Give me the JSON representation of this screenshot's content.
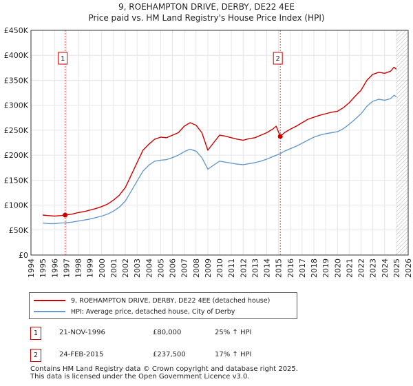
{
  "title_line1": "9, ROEHAMPTON DRIVE, DERBY, DE22 4EE",
  "title_line2": "Price paid vs. HM Land Registry's House Price Index (HPI)",
  "colors": {
    "property": "#cc0000",
    "hpi": "#6699cc",
    "marker_line": "#dd4444",
    "grid": "#e6e6e6",
    "future_hatch": "#aaaaaa"
  },
  "chart_data": {
    "type": "line",
    "x_range": [
      1994,
      2026
    ],
    "y_range": [
      0,
      450000
    ],
    "x_ticks": [
      "1994",
      "1995",
      "1996",
      "1997",
      "1998",
      "1999",
      "2000",
      "2001",
      "2002",
      "2003",
      "2004",
      "2005",
      "2006",
      "2007",
      "2008",
      "2009",
      "2010",
      "2011",
      "2012",
      "2013",
      "2014",
      "2015",
      "2016",
      "2017",
      "2018",
      "2019",
      "2020",
      "2021",
      "2022",
      "2023",
      "2024",
      "2025",
      "2026"
    ],
    "y_ticks": [
      {
        "value": 0,
        "label": "£0"
      },
      {
        "value": 50000,
        "label": "£50K"
      },
      {
        "value": 100000,
        "label": "£100K"
      },
      {
        "value": 150000,
        "label": "£150K"
      },
      {
        "value": 200000,
        "label": "£200K"
      },
      {
        "value": 250000,
        "label": "£250K"
      },
      {
        "value": 300000,
        "label": "£300K"
      },
      {
        "value": 350000,
        "label": "£350K"
      },
      {
        "value": 400000,
        "label": "£400K"
      },
      {
        "value": 450000,
        "label": "£450K"
      }
    ],
    "grid": true,
    "data_end_year": 2025.0,
    "series": [
      {
        "name": "9, ROEHAMPTON DRIVE, DERBY, DE22 4EE (detached house)",
        "color": "#cc0000",
        "points": [
          [
            1995.0,
            80000
          ],
          [
            1995.5,
            79000
          ],
          [
            1996.0,
            78000
          ],
          [
            1996.5,
            79000
          ],
          [
            1996.9,
            80000
          ],
          [
            1997.5,
            82000
          ],
          [
            1998.0,
            85000
          ],
          [
            1998.5,
            87000
          ],
          [
            1999.0,
            90000
          ],
          [
            1999.5,
            93000
          ],
          [
            2000.0,
            97000
          ],
          [
            2000.5,
            102000
          ],
          [
            2001.0,
            110000
          ],
          [
            2001.5,
            120000
          ],
          [
            2002.0,
            135000
          ],
          [
            2002.5,
            160000
          ],
          [
            2003.0,
            185000
          ],
          [
            2003.5,
            210000
          ],
          [
            2004.0,
            222000
          ],
          [
            2004.5,
            232000
          ],
          [
            2005.0,
            236000
          ],
          [
            2005.5,
            235000
          ],
          [
            2006.0,
            240000
          ],
          [
            2006.5,
            245000
          ],
          [
            2007.0,
            258000
          ],
          [
            2007.5,
            265000
          ],
          [
            2008.0,
            260000
          ],
          [
            2008.5,
            245000
          ],
          [
            2009.0,
            210000
          ],
          [
            2009.5,
            225000
          ],
          [
            2010.0,
            240000
          ],
          [
            2010.5,
            238000
          ],
          [
            2011.0,
            235000
          ],
          [
            2011.5,
            232000
          ],
          [
            2012.0,
            230000
          ],
          [
            2012.5,
            233000
          ],
          [
            2013.0,
            235000
          ],
          [
            2013.5,
            240000
          ],
          [
            2014.0,
            245000
          ],
          [
            2014.5,
            252000
          ],
          [
            2014.8,
            258000
          ],
          [
            2015.15,
            237500
          ],
          [
            2015.5,
            245000
          ],
          [
            2016.0,
            252000
          ],
          [
            2016.5,
            258000
          ],
          [
            2017.0,
            265000
          ],
          [
            2017.5,
            272000
          ],
          [
            2018.0,
            276000
          ],
          [
            2018.5,
            280000
          ],
          [
            2019.0,
            283000
          ],
          [
            2019.5,
            286000
          ],
          [
            2020.0,
            288000
          ],
          [
            2020.5,
            295000
          ],
          [
            2021.0,
            305000
          ],
          [
            2021.5,
            318000
          ],
          [
            2022.0,
            330000
          ],
          [
            2022.5,
            350000
          ],
          [
            2023.0,
            362000
          ],
          [
            2023.5,
            366000
          ],
          [
            2024.0,
            364000
          ],
          [
            2024.5,
            368000
          ],
          [
            2024.8,
            376000
          ],
          [
            2025.0,
            372000
          ]
        ]
      },
      {
        "name": "HPI: Average price, detached house, City of Derby",
        "color": "#6699cc",
        "points": [
          [
            1995.0,
            64000
          ],
          [
            1995.5,
            63000
          ],
          [
            1996.0,
            63000
          ],
          [
            1996.5,
            64000
          ],
          [
            1996.9,
            64500
          ],
          [
            1997.5,
            66000
          ],
          [
            1998.0,
            68000
          ],
          [
            1998.5,
            70000
          ],
          [
            1999.0,
            72000
          ],
          [
            1999.5,
            75000
          ],
          [
            2000.0,
            78000
          ],
          [
            2000.5,
            82000
          ],
          [
            2001.0,
            88000
          ],
          [
            2001.5,
            96000
          ],
          [
            2002.0,
            108000
          ],
          [
            2002.5,
            128000
          ],
          [
            2003.0,
            148000
          ],
          [
            2003.5,
            168000
          ],
          [
            2004.0,
            180000
          ],
          [
            2004.5,
            188000
          ],
          [
            2005.0,
            190000
          ],
          [
            2005.5,
            191000
          ],
          [
            2006.0,
            195000
          ],
          [
            2006.5,
            200000
          ],
          [
            2007.0,
            207000
          ],
          [
            2007.5,
            212000
          ],
          [
            2008.0,
            208000
          ],
          [
            2008.5,
            195000
          ],
          [
            2009.0,
            172000
          ],
          [
            2009.5,
            180000
          ],
          [
            2010.0,
            188000
          ],
          [
            2010.5,
            186000
          ],
          [
            2011.0,
            184000
          ],
          [
            2011.5,
            182000
          ],
          [
            2012.0,
            181000
          ],
          [
            2012.5,
            183000
          ],
          [
            2013.0,
            185000
          ],
          [
            2013.5,
            188000
          ],
          [
            2014.0,
            192000
          ],
          [
            2014.5,
            197000
          ],
          [
            2015.15,
            203000
          ],
          [
            2015.5,
            208000
          ],
          [
            2016.0,
            213000
          ],
          [
            2016.5,
            218000
          ],
          [
            2017.0,
            224000
          ],
          [
            2017.5,
            230000
          ],
          [
            2018.0,
            236000
          ],
          [
            2018.5,
            240000
          ],
          [
            2019.0,
            243000
          ],
          [
            2019.5,
            245000
          ],
          [
            2020.0,
            247000
          ],
          [
            2020.5,
            253000
          ],
          [
            2021.0,
            262000
          ],
          [
            2021.5,
            272000
          ],
          [
            2022.0,
            283000
          ],
          [
            2022.5,
            298000
          ],
          [
            2023.0,
            308000
          ],
          [
            2023.5,
            312000
          ],
          [
            2024.0,
            310000
          ],
          [
            2024.5,
            313000
          ],
          [
            2024.8,
            320000
          ],
          [
            2025.0,
            317000
          ]
        ]
      }
    ],
    "transactions": [
      {
        "num": "1",
        "year": 1996.9,
        "price": 80000
      },
      {
        "num": "2",
        "year": 2015.15,
        "price": 237500
      }
    ]
  },
  "legend": {
    "property": "9, ROEHAMPTON DRIVE, DERBY, DE22 4EE (detached house)",
    "hpi": "HPI: Average price, detached house, City of Derby"
  },
  "transactions_table": [
    {
      "num": "1",
      "date": "21-NOV-1996",
      "price": "£80,000",
      "hpi": "25% ↑ HPI"
    },
    {
      "num": "2",
      "date": "24-FEB-2015",
      "price": "£237,500",
      "hpi": "17% ↑ HPI"
    }
  ],
  "footer_line1": "Contains HM Land Registry data © Crown copyright and database right 2025.",
  "footer_line2": "This data is licensed under the Open Government Licence v3.0."
}
